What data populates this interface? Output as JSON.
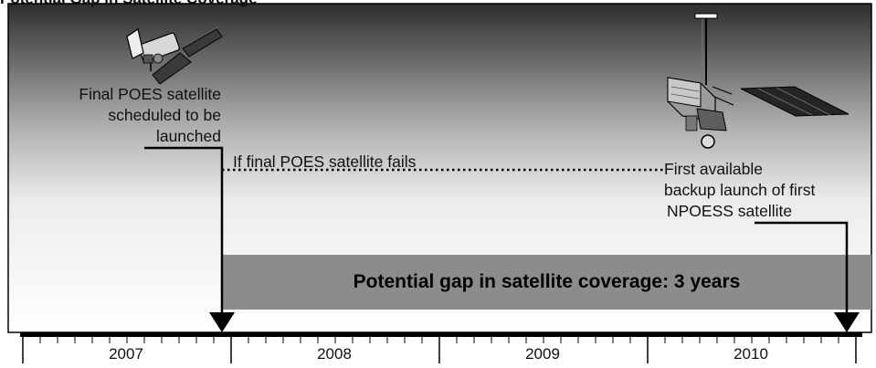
{
  "header": {
    "title": "Potential Gap in Satellite Coverage"
  },
  "poes_label": [
    "Final POES satellite",
    "scheduled to be",
    "launched"
  ],
  "failure_label": "If final POES satellite fails",
  "npoess_label": [
    "First available",
    "backup launch of first",
    "NPOESS satellite"
  ],
  "gap_label": "Potential gap in satellite coverage: 3 years",
  "timeline": {
    "years": [
      "2007",
      "2008",
      "2009",
      "2010"
    ]
  },
  "icons": {
    "left": "poes-satellite-icon",
    "right": "npoess-satellite-icon"
  },
  "colors": {
    "gap_band": "#8c8c8c",
    "sky_dark": "#2e2e2e",
    "sky_light": "#ffffff",
    "ink": "#000000"
  }
}
